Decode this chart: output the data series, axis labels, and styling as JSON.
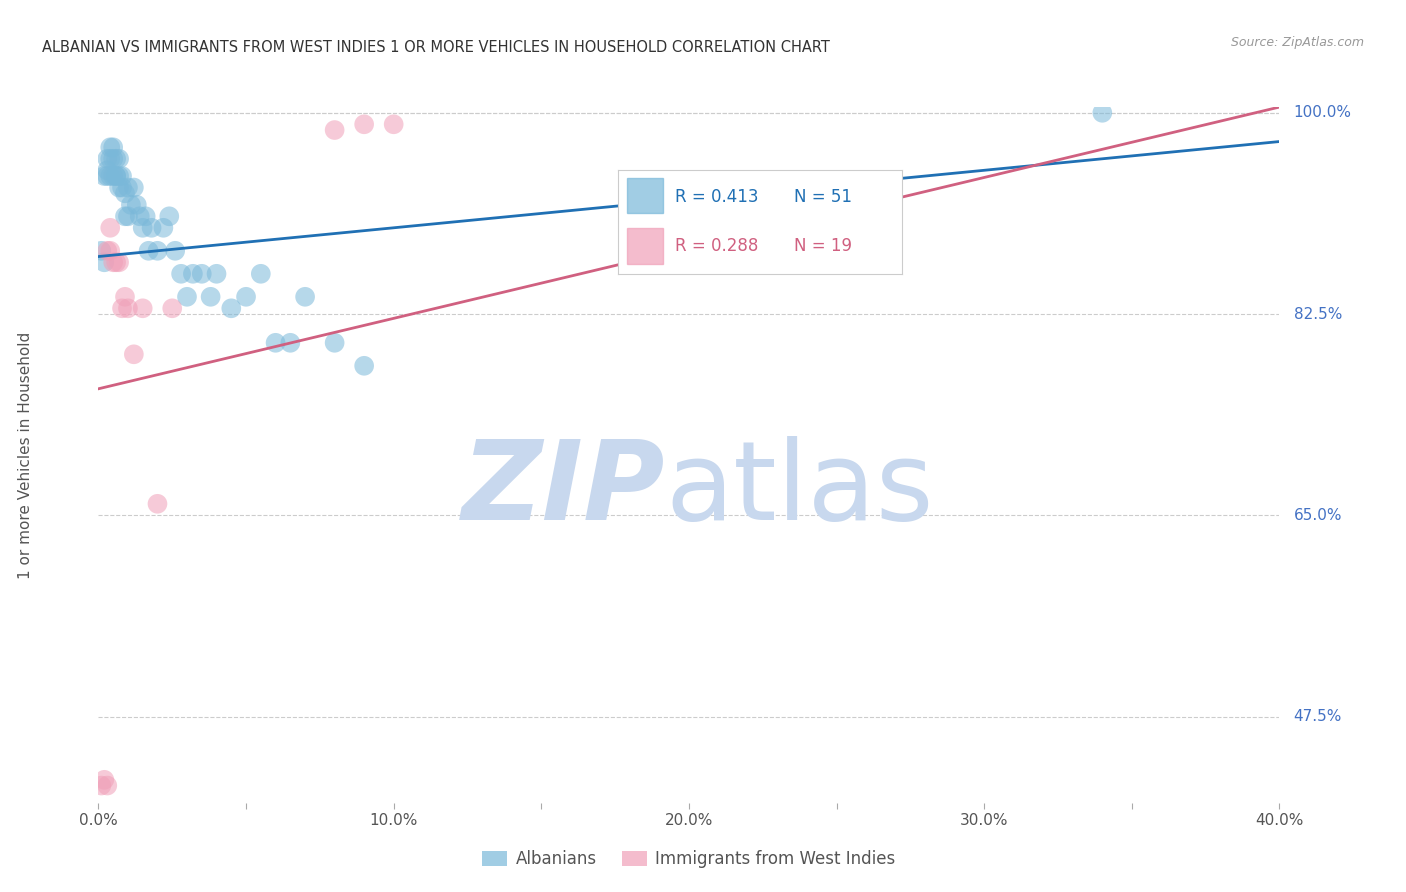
{
  "title": "ALBANIAN VS IMMIGRANTS FROM WEST INDIES 1 OR MORE VEHICLES IN HOUSEHOLD CORRELATION CHART",
  "source": "Source: ZipAtlas.com",
  "ylabel": "1 or more Vehicles in Household",
  "xlim": [
    0.0,
    0.4
  ],
  "ylim": [
    0.4,
    1.005
  ],
  "xtick_positions": [
    0.0,
    0.05,
    0.1,
    0.15,
    0.2,
    0.25,
    0.3,
    0.35,
    0.4
  ],
  "ytick_positions": [
    1.0,
    0.825,
    0.65,
    0.475
  ],
  "ytick_labels": [
    "100.0%",
    "82.5%",
    "65.0%",
    "47.5%"
  ],
  "grid_color": "#cccccc",
  "blue_color": "#7ab8d9",
  "pink_color": "#f0a0b8",
  "blue_line_color": "#2070b4",
  "pink_line_color": "#d06080",
  "legend_blue_R": "R = 0.413",
  "legend_blue_N": "N = 51",
  "legend_pink_R": "R = 0.288",
  "legend_pink_N": "N = 19",
  "albanians_x": [
    0.001,
    0.002,
    0.002,
    0.003,
    0.003,
    0.003,
    0.004,
    0.004,
    0.004,
    0.005,
    0.005,
    0.005,
    0.006,
    0.006,
    0.006,
    0.007,
    0.007,
    0.007,
    0.008,
    0.008,
    0.009,
    0.009,
    0.01,
    0.01,
    0.011,
    0.012,
    0.013,
    0.014,
    0.015,
    0.016,
    0.017,
    0.018,
    0.02,
    0.022,
    0.024,
    0.026,
    0.028,
    0.03,
    0.032,
    0.035,
    0.038,
    0.04,
    0.045,
    0.05,
    0.055,
    0.06,
    0.065,
    0.07,
    0.08,
    0.09,
    0.34
  ],
  "albanians_y": [
    0.88,
    0.87,
    0.945,
    0.945,
    0.95,
    0.96,
    0.945,
    0.96,
    0.97,
    0.945,
    0.96,
    0.97,
    0.945,
    0.945,
    0.96,
    0.935,
    0.945,
    0.96,
    0.935,
    0.945,
    0.91,
    0.93,
    0.91,
    0.935,
    0.92,
    0.935,
    0.92,
    0.91,
    0.9,
    0.91,
    0.88,
    0.9,
    0.88,
    0.9,
    0.91,
    0.88,
    0.86,
    0.84,
    0.86,
    0.86,
    0.84,
    0.86,
    0.83,
    0.84,
    0.86,
    0.8,
    0.8,
    0.84,
    0.8,
    0.78,
    1.0
  ],
  "westindies_x": [
    0.001,
    0.002,
    0.003,
    0.003,
    0.004,
    0.004,
    0.005,
    0.006,
    0.007,
    0.008,
    0.009,
    0.01,
    0.012,
    0.015,
    0.02,
    0.025,
    0.08,
    0.09,
    0.1
  ],
  "westindies_y": [
    0.415,
    0.42,
    0.415,
    0.88,
    0.88,
    0.9,
    0.87,
    0.87,
    0.87,
    0.83,
    0.84,
    0.83,
    0.79,
    0.83,
    0.66,
    0.83,
    0.985,
    0.99,
    0.99
  ],
  "blue_trendline_x": [
    0.0,
    0.4
  ],
  "blue_trendline_y": [
    0.875,
    0.975
  ],
  "pink_trendline_x": [
    0.0,
    0.4
  ],
  "pink_trendline_y": [
    0.76,
    1.005
  ]
}
